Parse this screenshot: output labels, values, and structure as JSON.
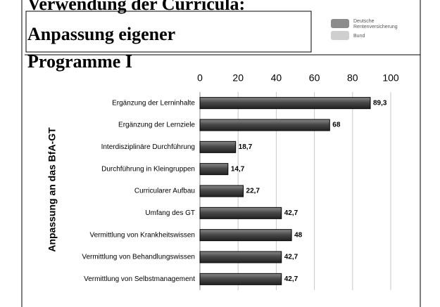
{
  "chart_data": {
    "type": "hbar",
    "title": [
      "Verwendung der Curricula:",
      "Anpassung eigener",
      "Programme I"
    ],
    "logo": [
      "Deutsche",
      "Rentenversicherung",
      "Bund"
    ],
    "ylabel": "Anpassung an das BfA-GT",
    "categories": [
      "Ergänzung der Lerninhalte",
      "Ergänzung der Lernziele",
      "Interdisziplinäre Durchführung",
      "Durchführung in Kleingruppen",
      "Curricularer Aufbau",
      "Umfang des GT",
      "Vermittlung von Krankheitswissen",
      "Vermittlung von Behandlungswissen",
      "Vermittlung von Selbstmanagement"
    ],
    "values": [
      89.3,
      68,
      18.7,
      14.7,
      22.7,
      42.7,
      48,
      42.7,
      42.7
    ],
    "value_labels": [
      "89,3",
      "68",
      "18,7",
      "14,7",
      "22,7",
      "42,7",
      "48",
      "42,7",
      "42,7"
    ],
    "color": "#4a4a4a",
    "xlim": [
      0,
      100
    ],
    "xticks": [
      0,
      20,
      40,
      60,
      80,
      100
    ],
    "grid": true
  }
}
